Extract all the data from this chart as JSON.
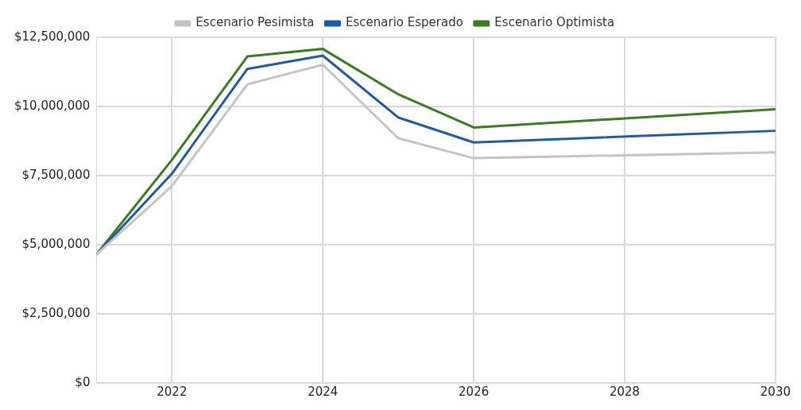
{
  "chart_data": {
    "type": "line",
    "x": [
      2021,
      2022,
      2023,
      2024,
      2025,
      2026,
      2030
    ],
    "series": [
      {
        "name": "Escenario Pesimista",
        "color": "#c4c4c4",
        "values": [
          4650000,
          7120000,
          10800000,
          11510000,
          8850000,
          8130000,
          8340000
        ]
      },
      {
        "name": "Escenario Esperado",
        "color": "#1f5aa6",
        "values": [
          4650000,
          7570000,
          11360000,
          11840000,
          9600000,
          8700000,
          9120000
        ]
      },
      {
        "name": "Escenario Optimista",
        "color": "#3a7d1e",
        "values": [
          4650000,
          8070000,
          11810000,
          12080000,
          10440000,
          9240000,
          9900000
        ]
      }
    ],
    "xlim": [
      2021,
      2030
    ],
    "xticks": [
      2022,
      2024,
      2026,
      2028,
      2030
    ],
    "ylim": [
      0,
      12500000
    ],
    "yticks": [
      {
        "value": 0,
        "label": "$0"
      },
      {
        "value": 2500000,
        "label": "$2,500,000"
      },
      {
        "value": 5000000,
        "label": "$5,000,000"
      },
      {
        "value": 7500000,
        "label": "$7,500,000"
      },
      {
        "value": 10000000,
        "label": "$10,000,000"
      },
      {
        "value": 12500000,
        "label": "$12,500,000"
      }
    ],
    "grid": true,
    "legend": "top",
    "marker": "none",
    "line_style": "solid"
  }
}
